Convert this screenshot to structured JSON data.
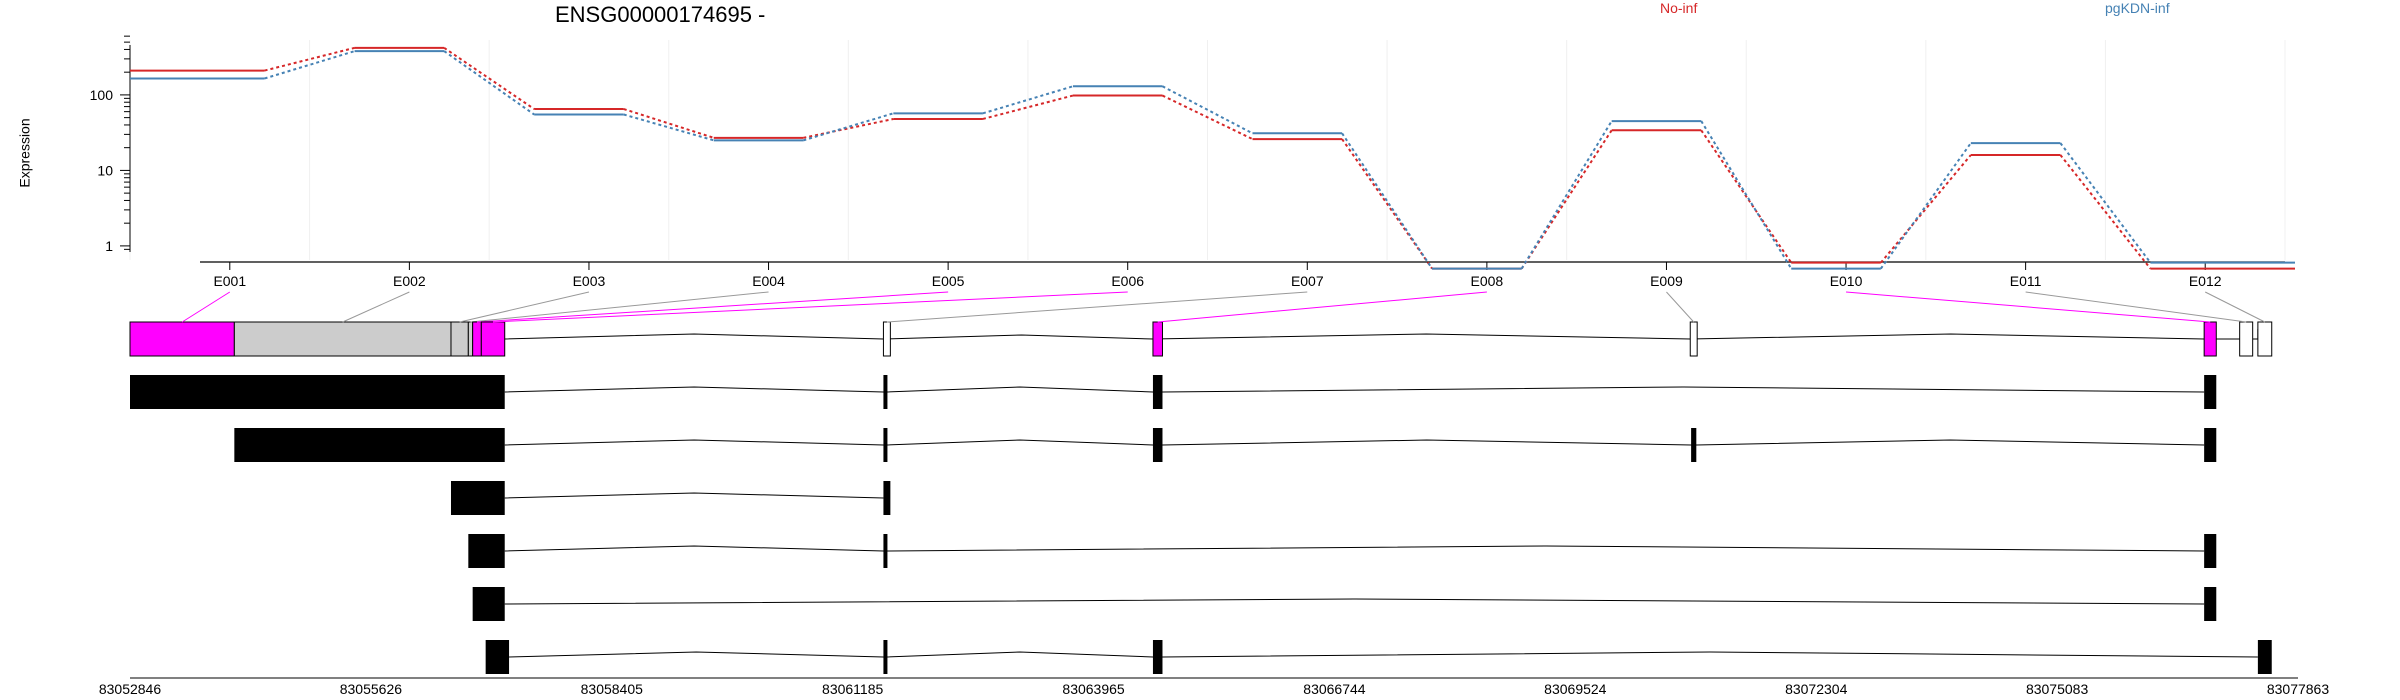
{
  "chart_data": {
    "type": "line",
    "title": "ENSG00000174695 -",
    "ylabel": "Expression",
    "xlabel": "",
    "y_scale": "log",
    "y_ticks": [
      "1",
      "10",
      "100"
    ],
    "ylim": [
      0.5,
      500
    ],
    "grid": true,
    "legend_placement": "top",
    "categories": [
      "E001",
      "E002",
      "E003",
      "E004",
      "E005",
      "E006",
      "E007",
      "E008",
      "E009",
      "E010",
      "E011",
      "E012"
    ],
    "series": [
      {
        "name": "No-inf",
        "color": "#d62728",
        "values": [
          210,
          420,
          65,
          27,
          48,
          98,
          26,
          0.5,
          34,
          0.6,
          16,
          0.5
        ]
      },
      {
        "name": "pgKDN-inf",
        "color": "#4682b4",
        "values": [
          165,
          380,
          55,
          25,
          57,
          130,
          31,
          0.5,
          45,
          0.5,
          23,
          0.6
        ]
      }
    ],
    "genomic_axis": {
      "min": 83052846,
      "max": 83077863,
      "tick_labels": [
        "83052846",
        "83055626",
        "83058405",
        "83061185",
        "83063965",
        "83066744",
        "83069524",
        "83072304",
        "83075083",
        "83077863"
      ]
    },
    "exon_model": {
      "exons": [
        {
          "id": "E001",
          "start": 83052846,
          "end": 83054050,
          "highlight": true
        },
        {
          "id": "E002",
          "start": 83054050,
          "end": 83056550,
          "highlight": false
        },
        {
          "id": "E003",
          "start": 83056550,
          "end": 83056750,
          "highlight": false
        },
        {
          "id": "E004",
          "start": 83056750,
          "end": 83056800,
          "highlight": false
        },
        {
          "id": "E005",
          "start": 83056800,
          "end": 83056900,
          "highlight": true
        },
        {
          "id": "E006",
          "start": 83056900,
          "end": 83057170,
          "highlight": true
        },
        {
          "id": "E007",
          "start": 83061540,
          "end": 83061620,
          "highlight": false
        },
        {
          "id": "E008",
          "start": 83064650,
          "end": 83064760,
          "highlight": true
        },
        {
          "id": "E009",
          "start": 83070850,
          "end": 83070930,
          "highlight": false
        },
        {
          "id": "E010",
          "start": 83076780,
          "end": 83076920,
          "highlight": true
        },
        {
          "id": "E011",
          "start": 83077190,
          "end": 83077340,
          "highlight": false
        },
        {
          "id": "E012",
          "start": 83077400,
          "end": 83077560,
          "highlight": false
        }
      ],
      "highlight_color": "#ff00ff",
      "plain_color": "#cccccc",
      "open_exon_ids": [
        "E007",
        "E009",
        "E011",
        "E012"
      ]
    },
    "transcripts": [
      {
        "exons": [
          [
            83052846,
            83057170
          ],
          [
            83061540,
            83061580
          ],
          [
            83064650,
            83064760
          ],
          [
            83076780,
            83076920
          ]
        ]
      },
      {
        "exons": [
          [
            83054050,
            83057170
          ],
          [
            83061540,
            83061580
          ],
          [
            83064650,
            83064760
          ],
          [
            83070860,
            83070920
          ],
          [
            83076780,
            83076920
          ]
        ]
      },
      {
        "exons": [
          [
            83056550,
            83057170
          ],
          [
            83061540,
            83061620
          ]
        ]
      },
      {
        "exons": [
          [
            83056750,
            83057170
          ],
          [
            83061540,
            83061580
          ],
          [
            83076780,
            83076920
          ]
        ]
      },
      {
        "exons": [
          [
            83056800,
            83057170
          ],
          [
            83076780,
            83076920
          ]
        ]
      },
      {
        "exons": [
          [
            83056950,
            83057220
          ],
          [
            83061540,
            83061580
          ],
          [
            83064650,
            83064760
          ],
          [
            83077400,
            83077560
          ]
        ]
      }
    ]
  }
}
